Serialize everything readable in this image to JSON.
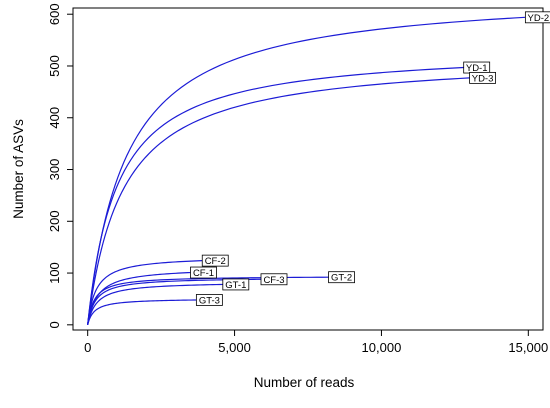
{
  "chart_data": {
    "type": "line",
    "title": "",
    "xlabel": "Number of reads",
    "ylabel": "Number of ASVs",
    "xlim": [
      -500,
      15500
    ],
    "ylim": [
      -10,
      612
    ],
    "xticks": [
      0,
      5000,
      10000,
      15000
    ],
    "xtick_labels": [
      "0",
      "5,000",
      "10,000",
      "15,000"
    ],
    "yticks": [
      0,
      100,
      200,
      300,
      400,
      500,
      600
    ],
    "ytick_labels": [
      "0",
      "100",
      "200",
      "300",
      "400",
      "500",
      "600"
    ],
    "grid": false,
    "legend": "none",
    "line_color": "#1c1cd6",
    "series": [
      {
        "name": "YD-2",
        "max_reads": 14900,
        "max_asvs": 594,
        "k": 1300
      },
      {
        "name": "YD-1",
        "max_reads": 12800,
        "max_asvs": 497,
        "k": 1000
      },
      {
        "name": "YD-3",
        "max_reads": 13000,
        "max_asvs": 477,
        "k": 1200
      },
      {
        "name": "CF-2",
        "max_reads": 3900,
        "max_asvs": 124,
        "k": 280
      },
      {
        "name": "CF-1",
        "max_reads": 3500,
        "max_asvs": 101,
        "k": 330
      },
      {
        "name": "GT-2",
        "max_reads": 8200,
        "max_asvs": 92,
        "k": 220
      },
      {
        "name": "CF-3",
        "max_reads": 5900,
        "max_asvs": 88,
        "k": 260
      },
      {
        "name": "GT-1",
        "max_reads": 4600,
        "max_asvs": 78,
        "k": 300
      },
      {
        "name": "GT-3",
        "max_reads": 3700,
        "max_asvs": 48,
        "k": 220
      }
    ]
  }
}
